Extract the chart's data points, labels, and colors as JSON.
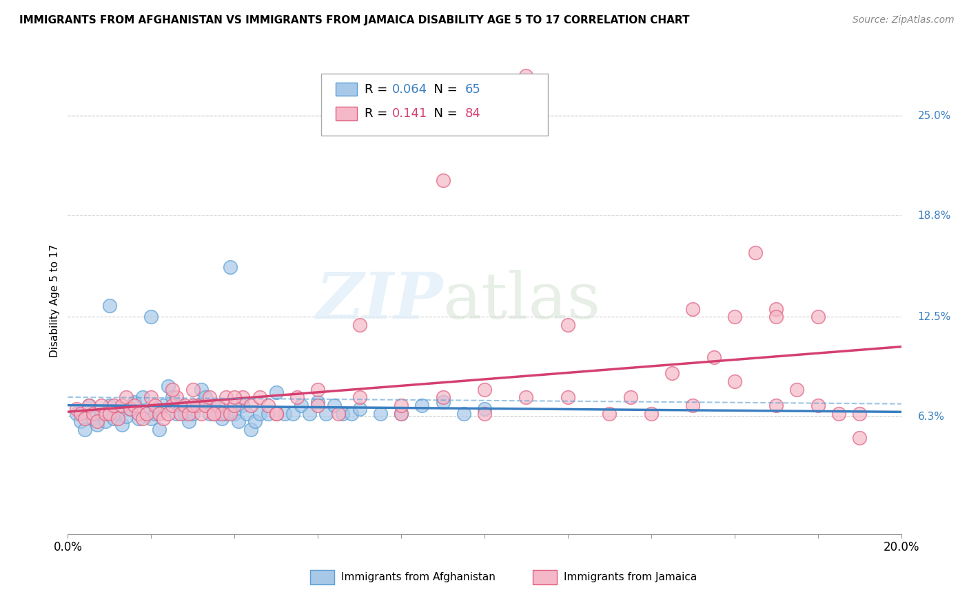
{
  "title": "IMMIGRANTS FROM AFGHANISTAN VS IMMIGRANTS FROM JAMAICA DISABILITY AGE 5 TO 17 CORRELATION CHART",
  "source": "Source: ZipAtlas.com",
  "ylabel": "Disability Age 5 to 17",
  "xlim": [
    0.0,
    0.2
  ],
  "ylim": [
    -0.01,
    0.28
  ],
  "ytick_labels_right": [
    "25.0%",
    "18.8%",
    "12.5%",
    "6.3%"
  ],
  "ytick_vals_right": [
    0.25,
    0.188,
    0.125,
    0.063
  ],
  "afghanistan_color": "#a8c8e8",
  "jamaica_color": "#f5b8c8",
  "afghanistan_edge_color": "#5a9fd4",
  "jamaica_edge_color": "#e06080",
  "afghanistan_line_color": "#3a7fc1",
  "jamaica_line_color": "#d44070",
  "afghanistan_R": 0.064,
  "afghanistan_N": 65,
  "jamaica_R": 0.141,
  "jamaica_N": 84,
  "legend_label_afghanistan": "Immigrants from Afghanistan",
  "legend_label_jamaica": "Immigrants from Jamaica",
  "watermark_zip": "ZIP",
  "watermark_atlas": "atlas",
  "background_color": "#ffffff",
  "grid_color": "#cccccc",
  "afg_x": [
    0.002,
    0.003,
    0.004,
    0.005,
    0.006,
    0.007,
    0.008,
    0.009,
    0.01,
    0.011,
    0.012,
    0.013,
    0.014,
    0.015,
    0.016,
    0.017,
    0.018,
    0.019,
    0.02,
    0.021,
    0.022,
    0.023,
    0.024,
    0.025,
    0.026,
    0.027,
    0.028,
    0.029,
    0.03,
    0.031,
    0.032,
    0.033,
    0.034,
    0.035,
    0.036,
    0.037,
    0.038,
    0.039,
    0.04,
    0.041,
    0.042,
    0.043,
    0.044,
    0.045,
    0.046,
    0.048,
    0.05,
    0.052,
    0.054,
    0.056,
    0.058,
    0.06,
    0.062,
    0.064,
    0.066,
    0.068,
    0.07,
    0.075,
    0.08,
    0.085,
    0.09,
    0.095,
    0.1,
    0.01,
    0.02
  ],
  "afg_y": [
    0.065,
    0.06,
    0.055,
    0.07,
    0.062,
    0.058,
    0.065,
    0.06,
    0.07,
    0.062,
    0.065,
    0.058,
    0.063,
    0.068,
    0.072,
    0.062,
    0.075,
    0.065,
    0.062,
    0.065,
    0.055,
    0.07,
    0.082,
    0.075,
    0.065,
    0.07,
    0.065,
    0.06,
    0.065,
    0.07,
    0.08,
    0.075,
    0.065,
    0.07,
    0.065,
    0.062,
    0.065,
    0.156,
    0.065,
    0.06,
    0.07,
    0.065,
    0.055,
    0.06,
    0.065,
    0.065,
    0.078,
    0.065,
    0.065,
    0.07,
    0.065,
    0.072,
    0.065,
    0.07,
    0.065,
    0.065,
    0.068,
    0.065,
    0.065,
    0.07,
    0.072,
    0.065,
    0.068,
    0.132,
    0.125
  ],
  "jam_x": [
    0.002,
    0.003,
    0.004,
    0.005,
    0.006,
    0.007,
    0.008,
    0.009,
    0.01,
    0.011,
    0.012,
    0.013,
    0.014,
    0.015,
    0.016,
    0.017,
    0.018,
    0.019,
    0.02,
    0.021,
    0.022,
    0.023,
    0.024,
    0.025,
    0.026,
    0.027,
    0.028,
    0.029,
    0.03,
    0.031,
    0.032,
    0.033,
    0.034,
    0.035,
    0.036,
    0.037,
    0.038,
    0.039,
    0.04,
    0.042,
    0.044,
    0.046,
    0.048,
    0.05,
    0.055,
    0.06,
    0.065,
    0.07,
    0.08,
    0.09,
    0.1,
    0.11,
    0.12,
    0.13,
    0.14,
    0.15,
    0.16,
    0.17,
    0.18,
    0.19,
    0.15,
    0.16,
    0.17,
    0.18,
    0.175,
    0.19,
    0.185,
    0.17,
    0.165,
    0.155,
    0.145,
    0.135,
    0.12,
    0.11,
    0.1,
    0.09,
    0.08,
    0.07,
    0.06,
    0.05,
    0.04,
    0.035,
    0.03,
    0.025
  ],
  "jam_y": [
    0.068,
    0.065,
    0.062,
    0.07,
    0.065,
    0.06,
    0.07,
    0.065,
    0.065,
    0.07,
    0.062,
    0.07,
    0.075,
    0.068,
    0.07,
    0.065,
    0.062,
    0.065,
    0.075,
    0.07,
    0.065,
    0.062,
    0.065,
    0.07,
    0.075,
    0.065,
    0.07,
    0.065,
    0.08,
    0.07,
    0.065,
    0.07,
    0.075,
    0.065,
    0.07,
    0.065,
    0.075,
    0.065,
    0.07,
    0.075,
    0.07,
    0.075,
    0.07,
    0.065,
    0.075,
    0.07,
    0.065,
    0.075,
    0.065,
    0.21,
    0.065,
    0.275,
    0.075,
    0.065,
    0.065,
    0.07,
    0.125,
    0.13,
    0.125,
    0.065,
    0.13,
    0.085,
    0.125,
    0.07,
    0.08,
    0.05,
    0.065,
    0.07,
    0.165,
    0.1,
    0.09,
    0.075,
    0.12,
    0.075,
    0.08,
    0.075,
    0.07,
    0.12,
    0.08,
    0.065,
    0.075,
    0.065,
    0.07,
    0.08
  ]
}
